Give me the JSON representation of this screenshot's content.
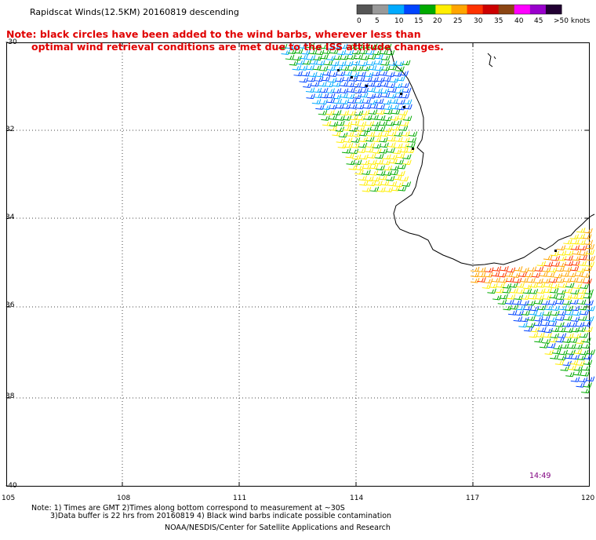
{
  "title": "Rapidscat Winds(12.5KM) 20160819 descending",
  "note": {
    "line1": "Note: black circles have been added to the wind barbs, wherever less than",
    "line2": "optimal wind retrieval conditions are met due to the ISS attitude changes."
  },
  "legend": {
    "colors": [
      "#555555",
      "#999999",
      "#00aaff",
      "#0044ff",
      "#00aa00",
      "#ffee00",
      "#ffa500",
      "#ff3300",
      "#cc0000",
      "#8b4513",
      "#ff00ff",
      "#9900cc",
      "#220033"
    ],
    "labels": [
      "0",
      "5",
      "10",
      "15",
      "20",
      "25",
      "30",
      "35",
      "40",
      "45",
      ">50 knots"
    ]
  },
  "lat_labels": [
    "-30",
    "32",
    "34",
    "36",
    "38",
    "-40"
  ],
  "lon_labels": [
    "105",
    "108",
    "111",
    "114",
    "117",
    "120"
  ],
  "time_label": "14:49",
  "footer": {
    "line1": "Note: 1) Times are GMT 2)Times along bottom correspond to measurement at ~30S",
    "line2": "3)Data buffer is 22 hrs from 20160819 4) Black wind barbs indicate possible contamination",
    "line3": "NOAA/NESDIS/Center for Satellite Applications and Research"
  }
}
